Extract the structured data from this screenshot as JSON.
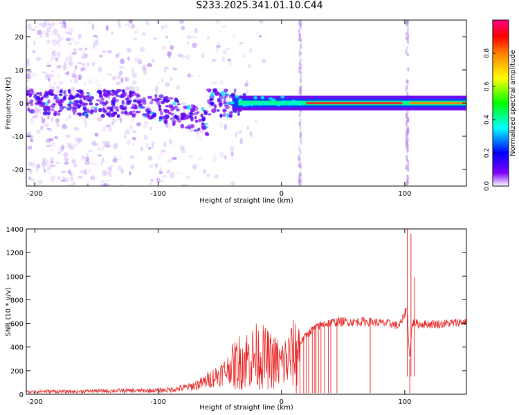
{
  "title": "S233.2025.341.01.10.C44",
  "chart_data": [
    {
      "type": "heatmap",
      "id": "spectrogram",
      "title": "",
      "xlabel": "Height of straight line (km)",
      "ylabel": "Frequency (Hz)",
      "xlim": [
        -207,
        150
      ],
      "ylim": [
        -25,
        25
      ],
      "x_ticks": [
        -200,
        -100,
        0,
        100
      ],
      "y_ticks": [
        -20,
        -10,
        0,
        10,
        20
      ],
      "colorbar": {
        "label": "Normalized spectral amplitude",
        "range": [
          0,
          1
        ],
        "ticks": [
          0.0,
          0.2,
          0.4,
          0.6,
          0.8
        ],
        "colors": [
          "#ffffff",
          "#7f00ff",
          "#0000ff",
          "#00ffff",
          "#00ff00",
          "#ffff00",
          "#ff8000",
          "#ff0000",
          "#ff0080"
        ]
      },
      "features": {
        "noise_region_km": [
          -207,
          -40
        ],
        "signal_line_frequency_hz": 0,
        "signal_onset_km": -40,
        "vertical_streaks_km": [
          15,
          102
        ]
      }
    },
    {
      "type": "line",
      "id": "snr",
      "title": "",
      "xlabel": "Height of straight line (km)",
      "ylabel": "SNR (10 * v/v)",
      "xlim": [
        -207,
        150
      ],
      "ylim": [
        0,
        1400
      ],
      "x_ticks": [
        -200,
        -100,
        0,
        100
      ],
      "y_ticks": [
        0,
        200,
        400,
        600,
        800,
        1000,
        1200,
        1400
      ],
      "series": [
        {
          "name": "SNR",
          "color": "#e82020",
          "x": [
            -207,
            -190,
            -170,
            -150,
            -130,
            -110,
            -95,
            -85,
            -75,
            -65,
            -58,
            -50,
            -45,
            -40,
            -35,
            -30,
            -25,
            -20,
            -15,
            -10,
            -5,
            0,
            5,
            10,
            15,
            20,
            25,
            30,
            35,
            40,
            45,
            50,
            60,
            70,
            80,
            90,
            95,
            98,
            100,
            102,
            104,
            106,
            108,
            110,
            120,
            130,
            140,
            150
          ],
          "y": [
            20,
            25,
            22,
            28,
            30,
            30,
            35,
            45,
            60,
            90,
            130,
            170,
            200,
            250,
            300,
            330,
            340,
            360,
            350,
            320,
            300,
            280,
            320,
            380,
            450,
            520,
            570,
            600,
            620,
            630,
            640,
            640,
            640,
            640,
            630,
            620,
            600,
            650,
            720,
            750,
            300,
            620,
            640,
            620,
            620,
            620,
            630,
            640
          ]
        }
      ],
      "dropouts_km": [
        12,
        15,
        18,
        20,
        22,
        25,
        27,
        28,
        30,
        32,
        35,
        38,
        40,
        45,
        72,
        104
      ],
      "spikes": [
        {
          "x": 102,
          "y": 1400
        },
        {
          "x": 105,
          "y": 1360
        },
        {
          "x": 108,
          "y": 990
        }
      ]
    }
  ]
}
